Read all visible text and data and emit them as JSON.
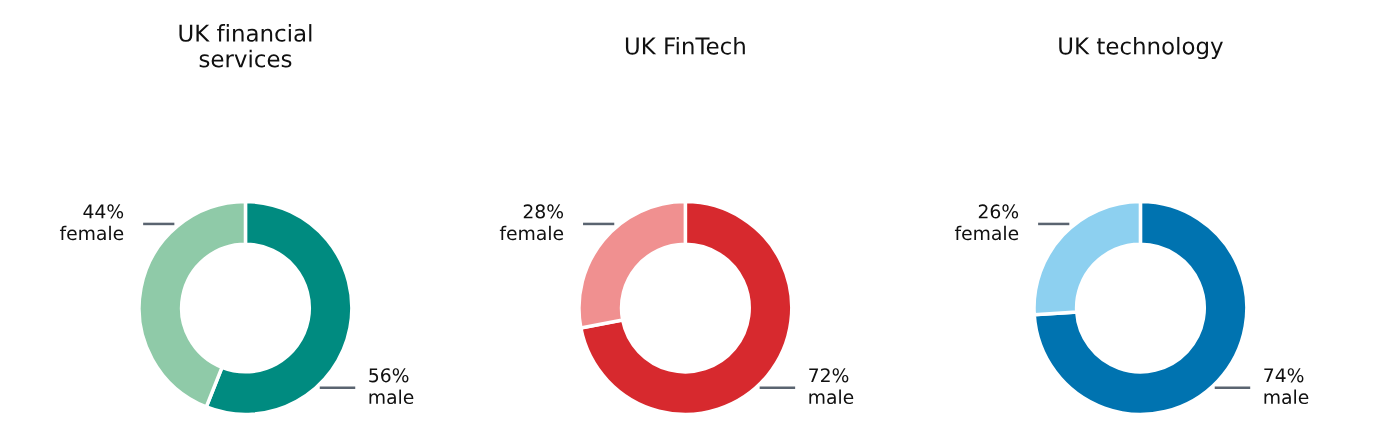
{
  "chart_data": [
    {
      "type": "donut",
      "title": "UK financial\nservices",
      "categories": [
        "male",
        "female"
      ],
      "values": [
        56,
        44
      ],
      "colors": [
        "#008b80",
        "#8fcaa8"
      ],
      "value_labels": [
        "56%",
        "44%"
      ],
      "legend": false
    },
    {
      "type": "donut",
      "title": "UK FinTech",
      "categories": [
        "male",
        "female"
      ],
      "values": [
        72,
        28
      ],
      "colors": [
        "#d7292e",
        "#f09090"
      ],
      "value_labels": [
        "72%",
        "28%"
      ],
      "legend": false
    },
    {
      "type": "donut",
      "title": "UK technology",
      "categories": [
        "male",
        "female"
      ],
      "values": [
        74,
        26
      ],
      "colors": [
        "#0073b0",
        "#8dd0f0"
      ],
      "value_labels": [
        "74%",
        "26%"
      ],
      "legend": false
    }
  ]
}
